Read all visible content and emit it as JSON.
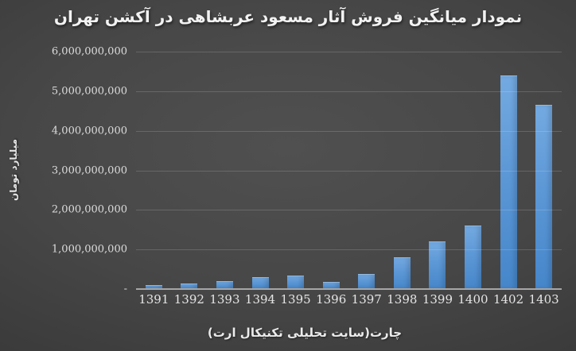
{
  "chart_data": {
    "type": "bar",
    "title": "نمودار میانگین فروش آثار مسعود عربشاهی در آکشن تهران",
    "ylabel": "میلیارد تومان",
    "xlabel": "چارت(سایت تحلیلی تکنیکال ارت)",
    "categories": [
      "1391",
      "1392",
      "1393",
      "1394",
      "1395",
      "1396",
      "1397",
      "1398",
      "1399",
      "1400",
      "1402",
      "1403"
    ],
    "values": [
      100000000,
      150000000,
      200000000,
      300000000,
      350000000,
      190000000,
      380000000,
      800000000,
      1200000000,
      1600000000,
      5400000000,
      4650000000
    ],
    "ylim": [
      0,
      6000000000
    ],
    "ytick_interval": 1000000000,
    "ytick_labels_top_to_bottom": [
      "6,000,000,000",
      "5,000,000,000",
      "4,000,000,000",
      "3,000,000,000",
      "2,000,000,000",
      "1,000,000,000",
      "-"
    ],
    "grid": true,
    "legend": false,
    "colors": {
      "bar": "#5d98d6",
      "bar_gradient_top": "#74aae1",
      "bar_gradient_bottom": "#4586ca",
      "background_center": "#4f4f4f",
      "background_edge": "#242424",
      "gridline": "rgba(255,255,255,0.16)",
      "axis_line": "#a6a6a6",
      "text": "#e5e5e5",
      "title_text": "#f2f2f2"
    }
  }
}
